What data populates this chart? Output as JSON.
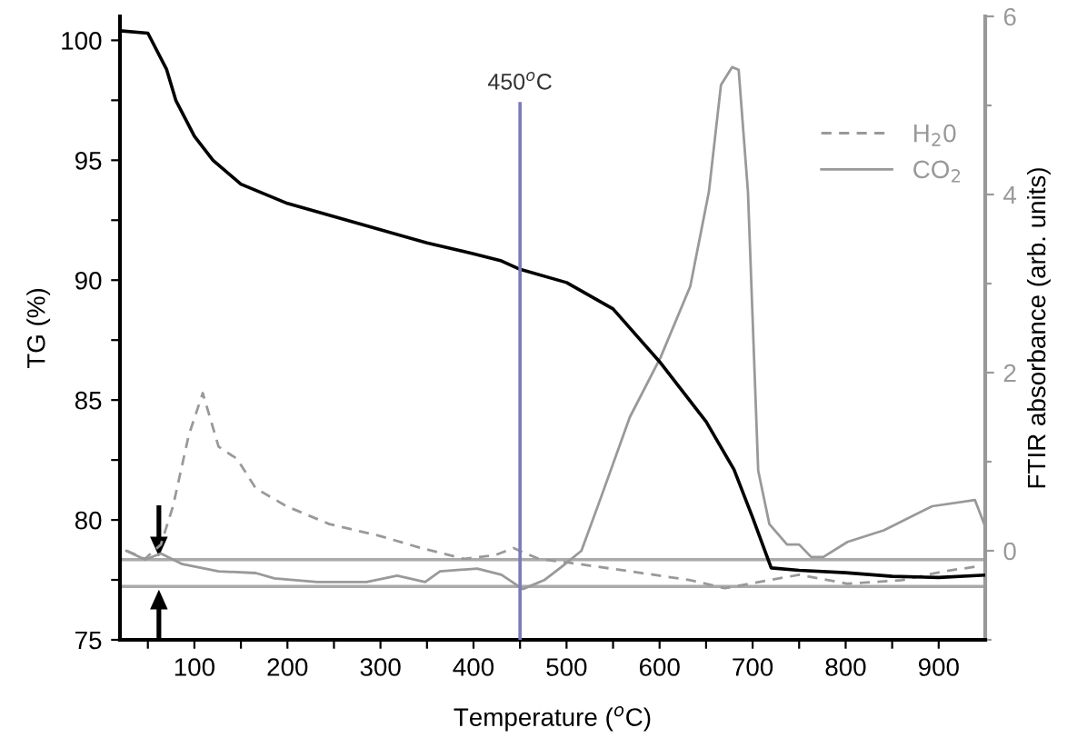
{
  "chart_data": {
    "type": "line",
    "xlabel": "Temperature ($^{o}$C)",
    "ylabel": "TG (%)",
    "y2label": "FTIR absorbance (arb. units)",
    "xlim": [
      20,
      950
    ],
    "ylim": [
      75,
      101
    ],
    "y2lim": [
      -1,
      6
    ],
    "xticks": [
      {
        "value": 50,
        "label": null
      },
      100,
      {
        "value": 150,
        "label": null
      },
      200,
      {
        "value": 250,
        "label": null
      },
      300,
      {
        "value": 350,
        "label": null
      },
      400,
      {
        "value": 450,
        "label": null
      },
      500,
      {
        "value": 550,
        "label": null
      },
      600,
      {
        "value": 650,
        "label": null
      },
      700,
      {
        "value": 750,
        "label": null
      },
      800,
      {
        "value": 850,
        "label": null
      },
      900
    ],
    "yticks": [
      75,
      {
        "value": 77.5,
        "label": null
      },
      80,
      {
        "value": 82.5,
        "label": null
      },
      85,
      {
        "value": 87.5,
        "label": null
      },
      90,
      {
        "value": 92.5,
        "label": null
      },
      95,
      {
        "value": 97.5,
        "label": null
      },
      100
    ],
    "y2ticks": [
      {
        "value": -1,
        "label": null
      },
      0,
      {
        "value": 1,
        "label": null
      },
      2,
      {
        "value": 3,
        "label": null
      },
      4,
      {
        "value": 5,
        "label": null
      },
      6
    ],
    "grid": false,
    "legend": "right",
    "marker": "none",
    "series": [
      {
        "color": "#000000",
        "line_style": "solid",
        "x": [
          20,
          50,
          70,
          80,
          100,
          120,
          150,
          200,
          250,
          300,
          350,
          400,
          430,
          450,
          500,
          550,
          600,
          650,
          680,
          700,
          720,
          750,
          800,
          850,
          900,
          950
        ],
        "values": [
          100.4,
          100.3,
          98.8,
          97.5,
          96.0,
          95.0,
          94.0,
          93.2,
          92.65,
          92.1,
          91.55,
          91.1,
          90.8,
          90.45,
          89.9,
          88.8,
          86.6,
          84.1,
          82.1,
          80.1,
          78.0,
          77.9,
          77.8,
          77.65,
          77.6,
          77.7
        ]
      },
      {
        "name": "H$_{2}$0",
        "color": "#999999",
        "line_style": "dashed",
        "axis": "y2",
        "x": [
          27,
          47,
          64,
          77,
          94,
          109,
          126,
          146,
          166,
          199,
          245,
          298,
          344,
          390,
          423,
          443,
          470,
          500,
          568,
          633,
          670,
          718,
          750,
          802,
          860,
          906,
          945
        ],
        "values": [
          0,
          -0.09,
          0.07,
          0.5,
          1.3,
          1.77,
          1.17,
          1.03,
          0.7,
          0.5,
          0.3,
          0.17,
          0.03,
          -0.09,
          -0.05,
          0.03,
          -0.09,
          -0.13,
          -0.23,
          -0.33,
          -0.42,
          -0.33,
          -0.27,
          -0.37,
          -0.33,
          -0.23,
          -0.17
        ]
      },
      {
        "name": "CO$_{2}$",
        "color": "#999999",
        "line_style": "solid",
        "axis": "y2",
        "x": [
          27,
          47,
          64,
          87,
          126,
          166,
          186,
          232,
          285,
          318,
          348,
          364,
          404,
          430,
          453,
          476,
          496,
          516,
          536,
          568,
          601,
          633,
          653,
          666,
          678,
          685,
          695,
          706,
          718,
          737,
          750,
          763,
          776,
          802,
          841,
          893,
          939,
          949
        ],
        "values": [
          0,
          -0.1,
          -0.03,
          -0.15,
          -0.23,
          -0.25,
          -0.31,
          -0.35,
          -0.35,
          -0.28,
          -0.35,
          -0.23,
          -0.2,
          -0.27,
          -0.43,
          -0.33,
          -0.17,
          0,
          0.57,
          1.5,
          2.17,
          2.97,
          4.03,
          5.23,
          5.43,
          5.4,
          4.03,
          0.9,
          0.3,
          0.07,
          0.07,
          -0.07,
          -0.07,
          0.1,
          0.23,
          0.5,
          0.57,
          0.3
        ]
      }
    ],
    "ref_lines": [
      {
        "axis": "x",
        "value": 450,
        "label": "450$^{o}$C",
        "color": "#7b7bb8"
      },
      {
        "axis": "y2",
        "value": -0.1,
        "color": "#aaaaaa"
      },
      {
        "axis": "y2",
        "value": -0.4,
        "color": "#aaaaaa"
      }
    ]
  }
}
